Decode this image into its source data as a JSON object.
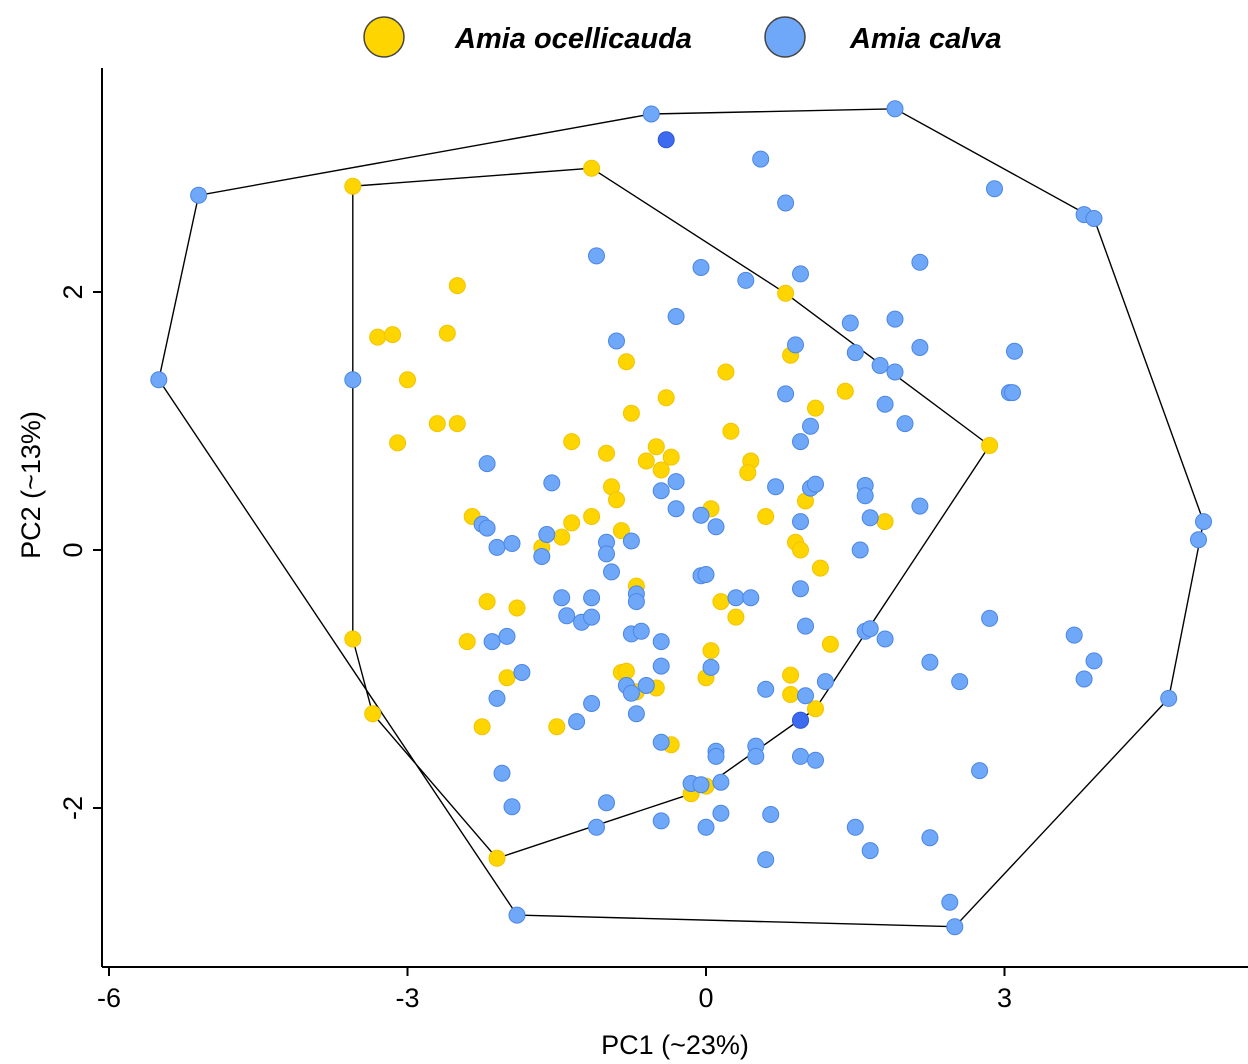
{
  "chart_data": {
    "type": "scatter",
    "xlabel": "PC1 (~23%)",
    "ylabel": "PC2 (~13%)",
    "xlim": [
      -6.0,
      5.0
    ],
    "ylim": [
      -3.2,
      3.6
    ],
    "x_ticks": [
      -6,
      -3,
      0,
      3
    ],
    "x_tick_labels": [
      "-6",
      "-3",
      "0",
      "3"
    ],
    "y_ticks": [
      -2,
      0,
      2
    ],
    "y_tick_labels": [
      "-2",
      "0",
      "2"
    ],
    "grid": false,
    "legend_position": "top",
    "hulls": true,
    "series": [
      {
        "name": "Amia ocellicauda",
        "color": "#FFD500",
        "points": [
          [
            -3.55,
            2.82
          ],
          [
            -1.15,
            2.96
          ],
          [
            -2.5,
            2.05
          ],
          [
            -3.3,
            1.65
          ],
          [
            -3.15,
            1.67
          ],
          [
            -2.6,
            1.68
          ],
          [
            -3.0,
            1.32
          ],
          [
            -3.1,
            0.83
          ],
          [
            -2.7,
            0.98
          ],
          [
            -2.5,
            0.98
          ],
          [
            -0.8,
            1.46
          ],
          [
            -0.75,
            1.06
          ],
          [
            -0.4,
            1.18
          ],
          [
            0.8,
            1.99
          ],
          [
            0.85,
            1.51
          ],
          [
            1.1,
            1.1
          ],
          [
            1.4,
            1.23
          ],
          [
            0.2,
            1.38
          ],
          [
            0.25,
            0.92
          ],
          [
            0.45,
            0.69
          ],
          [
            0.42,
            0.6
          ],
          [
            -1.35,
            0.84
          ],
          [
            -1.0,
            0.75
          ],
          [
            -0.5,
            0.8
          ],
          [
            -0.6,
            0.69
          ],
          [
            -0.45,
            0.62
          ],
          [
            -0.35,
            0.72
          ],
          [
            -0.95,
            0.49
          ],
          [
            -0.9,
            0.39
          ],
          [
            0.05,
            0.32
          ],
          [
            -2.35,
            0.26
          ],
          [
            -1.35,
            0.21
          ],
          [
            -1.15,
            0.26
          ],
          [
            -0.85,
            0.15
          ],
          [
            0.6,
            0.26
          ],
          [
            1.0,
            0.38
          ],
          [
            1.8,
            0.22
          ],
          [
            -1.65,
            0.02
          ],
          [
            -1.45,
            0.1
          ],
          [
            0.9,
            0.06
          ],
          [
            0.95,
            0.0
          ],
          [
            1.15,
            -0.14
          ],
          [
            -0.7,
            -0.28
          ],
          [
            -2.2,
            -0.4
          ],
          [
            -1.9,
            -0.45
          ],
          [
            0.15,
            -0.4
          ],
          [
            0.3,
            -0.52
          ],
          [
            1.25,
            -0.73
          ],
          [
            -2.4,
            -0.71
          ],
          [
            0.05,
            -0.78
          ],
          [
            -0.85,
            -0.95
          ],
          [
            -0.8,
            -0.94
          ],
          [
            -0.7,
            -1.1
          ],
          [
            -0.5,
            -1.07
          ],
          [
            0.0,
            -0.99
          ],
          [
            0.85,
            -0.97
          ],
          [
            0.85,
            -1.12
          ],
          [
            1.1,
            -1.23
          ],
          [
            -2.0,
            -0.99
          ],
          [
            -3.55,
            -0.69
          ],
          [
            -3.35,
            -1.27
          ],
          [
            -2.25,
            -1.37
          ],
          [
            -1.5,
            -1.37
          ],
          [
            -0.35,
            -1.51
          ],
          [
            -0.15,
            -1.89
          ],
          [
            0.0,
            -1.83
          ],
          [
            -2.1,
            -2.39
          ],
          [
            2.85,
            0.81
          ]
        ]
      },
      {
        "name": "Amia calva",
        "color": "#6FA8F8",
        "points": [
          [
            -0.55,
            3.38
          ],
          [
            1.9,
            3.42
          ],
          [
            0.55,
            3.03
          ],
          [
            0.8,
            2.69
          ],
          [
            2.9,
            2.8
          ],
          [
            3.8,
            2.6
          ],
          [
            3.9,
            2.57
          ],
          [
            -5.1,
            2.75
          ],
          [
            -1.1,
            2.28
          ],
          [
            0.4,
            2.09
          ],
          [
            0.95,
            2.14
          ],
          [
            2.15,
            2.23
          ],
          [
            -0.05,
            2.19
          ],
          [
            -0.3,
            1.81
          ],
          [
            -0.9,
            1.62
          ],
          [
            0.9,
            1.59
          ],
          [
            1.45,
            1.76
          ],
          [
            1.9,
            1.79
          ],
          [
            2.15,
            1.57
          ],
          [
            3.1,
            1.54
          ],
          [
            1.5,
            1.53
          ],
          [
            1.75,
            1.43
          ],
          [
            1.9,
            1.38
          ],
          [
            3.05,
            1.22
          ],
          [
            3.08,
            1.22
          ],
          [
            0.8,
            1.21
          ],
          [
            1.8,
            1.13
          ],
          [
            2.0,
            0.98
          ],
          [
            1.05,
            0.96
          ],
          [
            0.95,
            0.84
          ],
          [
            -5.5,
            1.32
          ],
          [
            -3.55,
            1.32
          ],
          [
            -2.2,
            0.67
          ],
          [
            -1.55,
            0.52
          ],
          [
            -0.3,
            0.53
          ],
          [
            -0.45,
            0.46
          ],
          [
            0.7,
            0.49
          ],
          [
            1.05,
            0.48
          ],
          [
            1.1,
            0.51
          ],
          [
            1.6,
            0.5
          ],
          [
            1.6,
            0.42
          ],
          [
            2.15,
            0.34
          ],
          [
            -0.3,
            0.32
          ],
          [
            -0.05,
            0.27
          ],
          [
            0.1,
            0.18
          ],
          [
            0.95,
            0.22
          ],
          [
            1.65,
            0.25
          ],
          [
            -2.25,
            0.2
          ],
          [
            -2.2,
            0.17
          ],
          [
            -2.1,
            0.02
          ],
          [
            -1.95,
            0.05
          ],
          [
            -1.65,
            -0.05
          ],
          [
            -1.6,
            0.12
          ],
          [
            -1.0,
            0.06
          ],
          [
            -1.0,
            -0.03
          ],
          [
            -0.75,
            0.07
          ],
          [
            -0.95,
            -0.17
          ],
          [
            -0.05,
            -0.2
          ],
          [
            0.0,
            -0.19
          ],
          [
            1.55,
            0.0
          ],
          [
            -1.45,
            -0.37
          ],
          [
            -1.15,
            -0.37
          ],
          [
            -0.7,
            -0.34
          ],
          [
            -0.7,
            -0.4
          ],
          [
            -1.4,
            -0.51
          ],
          [
            -1.25,
            -0.56
          ],
          [
            -1.15,
            -0.52
          ],
          [
            -0.75,
            -0.65
          ],
          [
            -0.65,
            -0.63
          ],
          [
            -0.45,
            -0.71
          ],
          [
            0.3,
            -0.37
          ],
          [
            0.45,
            -0.37
          ],
          [
            0.95,
            -0.3
          ],
          [
            1.0,
            -0.59
          ],
          [
            1.6,
            -0.63
          ],
          [
            1.65,
            -0.61
          ],
          [
            1.8,
            -0.69
          ],
          [
            2.85,
            -0.53
          ],
          [
            -2.15,
            -0.71
          ],
          [
            -2.0,
            -0.67
          ],
          [
            -1.85,
            -0.95
          ],
          [
            -2.1,
            -1.15
          ],
          [
            -0.8,
            -1.05
          ],
          [
            -0.6,
            -1.05
          ],
          [
            -0.45,
            -0.9
          ],
          [
            -0.75,
            -1.11
          ],
          [
            0.05,
            -0.91
          ],
          [
            0.6,
            -1.08
          ],
          [
            1.0,
            -1.13
          ],
          [
            1.2,
            -1.02
          ],
          [
            2.25,
            -0.87
          ],
          [
            2.55,
            -1.02
          ],
          [
            3.7,
            -0.66
          ],
          [
            3.9,
            -0.86
          ],
          [
            3.8,
            -1.0
          ],
          [
            -1.15,
            -1.19
          ],
          [
            -1.3,
            -1.33
          ],
          [
            -0.7,
            -1.27
          ],
          [
            0.95,
            -1.32
          ],
          [
            -0.45,
            -1.49
          ],
          [
            0.1,
            -1.56
          ],
          [
            0.1,
            -1.6
          ],
          [
            0.5,
            -1.52
          ],
          [
            0.5,
            -1.6
          ],
          [
            0.95,
            -1.6
          ],
          [
            1.1,
            -1.63
          ],
          [
            -2.05,
            -1.73
          ],
          [
            -1.95,
            -1.99
          ],
          [
            -0.15,
            -1.81
          ],
          [
            -0.05,
            -1.82
          ],
          [
            0.15,
            -1.8
          ],
          [
            -1.0,
            -1.96
          ],
          [
            -0.45,
            -2.1
          ],
          [
            0.0,
            -2.15
          ],
          [
            0.15,
            -2.04
          ],
          [
            -1.1,
            -2.15
          ],
          [
            0.65,
            -2.05
          ],
          [
            0.6,
            -2.4
          ],
          [
            1.5,
            -2.15
          ],
          [
            1.65,
            -2.33
          ],
          [
            2.25,
            -2.23
          ],
          [
            2.75,
            -1.71
          ],
          [
            2.45,
            -2.73
          ],
          [
            -1.9,
            -2.83
          ],
          [
            2.5,
            -2.92
          ],
          [
            4.65,
            -1.15
          ],
          [
            4.95,
            0.08
          ],
          [
            5.0,
            0.22
          ]
        ]
      },
      {
        "name": "",
        "color": "#3D6BEF",
        "points": [
          [
            -0.4,
            3.18
          ],
          [
            0.95,
            -1.32
          ]
        ]
      }
    ]
  }
}
